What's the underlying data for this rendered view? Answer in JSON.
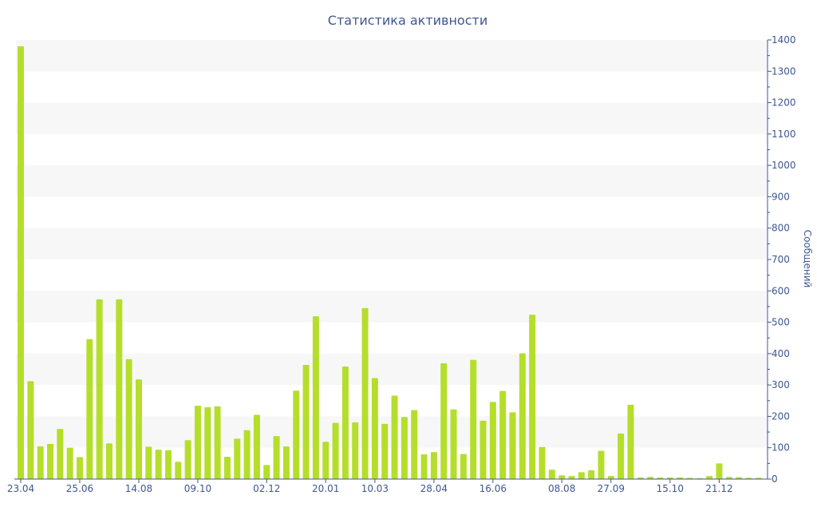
{
  "chart_data": {
    "type": "bar",
    "title": "Статистика активности",
    "ylabel": "Сообщений",
    "xlabel": "",
    "ylim": [
      0,
      1400
    ],
    "y_ticks": [
      0,
      100,
      200,
      300,
      400,
      500,
      600,
      700,
      800,
      900,
      1000,
      1100,
      1200,
      1300,
      1400
    ],
    "x_tick_labels": [
      "23.04",
      "25.06",
      "14.08",
      "09.10",
      "02.12",
      "20.01",
      "10.03",
      "28.04",
      "16.06",
      "08.08",
      "27.09",
      "15.10",
      "21.12"
    ],
    "x_tick_index": [
      0,
      6,
      12,
      18,
      25,
      31,
      36,
      42,
      48,
      55,
      60,
      66,
      71
    ],
    "grid": "horizontal-bands",
    "colors": {
      "bar": "#b5de2b",
      "band": "#f7f7f7",
      "axis": "#3e5790",
      "text": "#3e5790"
    },
    "values": [
      1380,
      312,
      104,
      112,
      160,
      100,
      70,
      446,
      573,
      114,
      573,
      382,
      318,
      103,
      94,
      92,
      55,
      124,
      234,
      229,
      232,
      71,
      129,
      156,
      205,
      45,
      137,
      104,
      282,
      364,
      519,
      119,
      179,
      359,
      181,
      545,
      322,
      176,
      266,
      198,
      220,
      79,
      86,
      369,
      222,
      80,
      380,
      186,
      246,
      281,
      213,
      401,
      524,
      102,
      30,
      12,
      10,
      22,
      28,
      90,
      10,
      145,
      237,
      5,
      7,
      5,
      5,
      5,
      4,
      3,
      10,
      50,
      7,
      6,
      4,
      4
    ]
  }
}
